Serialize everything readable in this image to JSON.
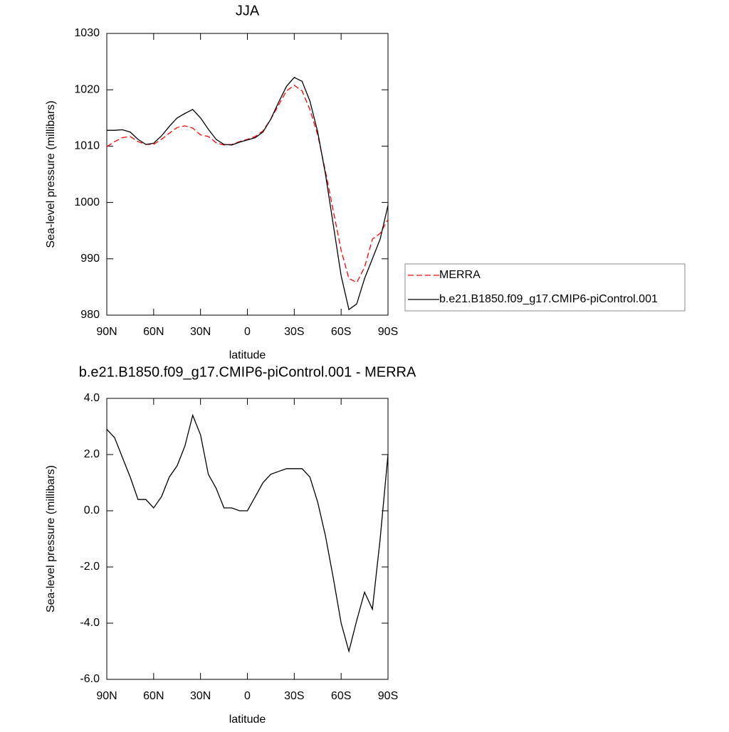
{
  "chart_data": [
    {
      "type": "line",
      "title": "JJA",
      "xlabel": "latitude",
      "ylabel": "Sea-level pressure (millibars)",
      "x": [
        90,
        85,
        80,
        75,
        70,
        65,
        60,
        55,
        50,
        45,
        40,
        35,
        30,
        25,
        20,
        15,
        10,
        5,
        0,
        -5,
        -10,
        -15,
        -20,
        -25,
        -30,
        -35,
        -40,
        -45,
        -50,
        -55,
        -60,
        -65,
        -70,
        -75,
        -80,
        -85,
        -90
      ],
      "xlim": [
        90,
        -90
      ],
      "xticks": [
        {
          "value": 90,
          "label": "90N"
        },
        {
          "value": 60,
          "label": "60N"
        },
        {
          "value": 30,
          "label": "30N"
        },
        0,
        {
          "value": -30,
          "label": "30S"
        },
        {
          "value": -60,
          "label": "60S"
        },
        {
          "value": -90,
          "label": "90S"
        }
      ],
      "ylim": [
        980,
        1030
      ],
      "yticks": [
        980,
        990,
        1000,
        1010,
        1020,
        1030
      ],
      "legend": "right",
      "series": [
        {
          "name": "MERRA",
          "color": "#ff0000",
          "dashed": true,
          "values": [
            1009.9,
            1010.8,
            1011.5,
            1011.7,
            1010.8,
            1010.3,
            1010.3,
            1011.2,
            1012.3,
            1013.3,
            1013.6,
            1013.2,
            1012.0,
            1011.7,
            1010.6,
            1010.2,
            1010.3,
            1010.8,
            1011.2,
            1011.7,
            1012.7,
            1014.8,
            1017.3,
            1019.8,
            1020.8,
            1019.8,
            1016.5,
            1012.0,
            1005.5,
            998.5,
            991.5,
            986.5,
            985.8,
            988.5,
            993.5,
            994.5,
            997.0
          ]
        },
        {
          "name": "b.e21.B1850.f09_g17.CMIP6-piControl.001",
          "color": "#000000",
          "dashed": false,
          "values": [
            1012.8,
            1012.8,
            1012.9,
            1012.5,
            1011.2,
            1010.3,
            1010.5,
            1011.8,
            1013.5,
            1015.0,
            1015.8,
            1016.5,
            1015.0,
            1013.0,
            1011.2,
            1010.3,
            1010.2,
            1010.7,
            1011.1,
            1011.5,
            1012.5,
            1014.8,
            1017.8,
            1020.6,
            1022.2,
            1021.5,
            1018.0,
            1012.5,
            1005.0,
            996.0,
            987.0,
            981.0,
            982.0,
            986.5,
            990.0,
            993.5,
            999.5
          ]
        }
      ]
    },
    {
      "type": "line",
      "title": "b.e21.B1850.f09_g17.CMIP6-piControl.001 - MERRA",
      "xlabel": "latitude",
      "ylabel": "Sea-level pressure (millibars)",
      "x": [
        90,
        85,
        80,
        75,
        70,
        65,
        60,
        55,
        50,
        45,
        40,
        35,
        30,
        25,
        20,
        15,
        10,
        5,
        0,
        -5,
        -10,
        -15,
        -20,
        -25,
        -30,
        -35,
        -40,
        -45,
        -50,
        -55,
        -60,
        -65,
        -70,
        -75,
        -80,
        -85,
        -90
      ],
      "xlim": [
        90,
        -90
      ],
      "xticks": [
        {
          "value": 90,
          "label": "90N"
        },
        {
          "value": 60,
          "label": "60N"
        },
        {
          "value": 30,
          "label": "30N"
        },
        0,
        {
          "value": -30,
          "label": "30S"
        },
        {
          "value": -60,
          "label": "60S"
        },
        {
          "value": -90,
          "label": "90S"
        }
      ],
      "ylim": [
        -6,
        4
      ],
      "yticks": [
        {
          "value": -6,
          "label": "-6.0"
        },
        {
          "value": -4,
          "label": "-4.0"
        },
        {
          "value": -2,
          "label": "-2.0"
        },
        {
          "value": 0,
          "label": "0.0"
        },
        {
          "value": 2,
          "label": "2.0"
        },
        {
          "value": 4,
          "label": "4.0"
        }
      ],
      "color": "#000000",
      "values": [
        2.9,
        2.6,
        1.9,
        1.2,
        0.4,
        0.4,
        0.1,
        0.5,
        1.2,
        1.6,
        2.3,
        3.4,
        2.7,
        1.3,
        0.8,
        0.1,
        0.1,
        0.0,
        0.0,
        0.5,
        1.0,
        1.3,
        1.4,
        1.5,
        1.5,
        1.5,
        1.2,
        0.3,
        -0.9,
        -2.4,
        -4.0,
        -5.0,
        -3.9,
        -2.9,
        -3.5,
        -1.0,
        2.0
      ]
    }
  ]
}
